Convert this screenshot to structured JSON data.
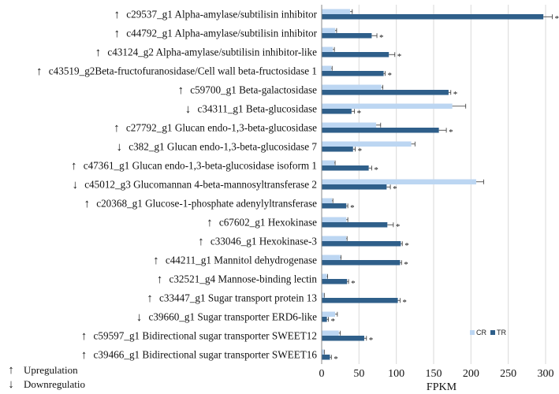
{
  "chart_data": {
    "type": "bar",
    "orientation": "horizontal",
    "xlabel": "FPKM",
    "xlim": [
      0,
      300
    ],
    "xticks": [
      0,
      50,
      100,
      150,
      200,
      250,
      300
    ],
    "grid": true,
    "legend_position": "bottom-right",
    "series_colors": {
      "CR": "#bcd6f2",
      "TR": "#2f5f8a"
    },
    "arrow_colors": {
      "up": "#e0201b",
      "down": "#2fa836"
    },
    "categories": [
      {
        "label": "c29537_g1  Alpha-amylase/subtilisin inhibitor",
        "regulation": "up",
        "CR": 38,
        "TR": 297,
        "cr_err": 3,
        "tr_err": 12,
        "significant": true
      },
      {
        "label": "c44792_g1  Alpha-amylase/subtilisin inhibitor",
        "regulation": "up",
        "CR": 18,
        "TR": 67,
        "cr_err": 2,
        "tr_err": 7,
        "significant": true
      },
      {
        "label": "c43124_g2  Alpha-amylase/subtilisin inhibitor-like",
        "regulation": "up",
        "CR": 15,
        "TR": 90,
        "cr_err": 2,
        "tr_err": 8,
        "significant": true
      },
      {
        "label": "c43519_g2Beta-fructofuranosidase/Cell wall beta-fructosidase 1",
        "regulation": "up",
        "CR": 13,
        "TR": 83,
        "cr_err": 1,
        "tr_err": 2,
        "significant": true
      },
      {
        "label": "c59700_g1  Beta-galactosidase",
        "regulation": "up",
        "CR": 80,
        "TR": 170,
        "cr_err": 2,
        "tr_err": 3,
        "significant": true
      },
      {
        "label": "c34311_g1  Beta-glucosidase",
        "regulation": "down",
        "CR": 175,
        "TR": 40,
        "cr_err": 18,
        "tr_err": 4,
        "significant": true
      },
      {
        "label": "c27792_g1  Glucan endo-1,3-beta-glucosidase",
        "regulation": "up",
        "CR": 73,
        "TR": 157,
        "cr_err": 6,
        "tr_err": 10,
        "significant": true
      },
      {
        "label": "c382_g1  Glucan endo-1,3-beta-glucosidase 7",
        "regulation": "down",
        "CR": 120,
        "TR": 42,
        "cr_err": 5,
        "tr_err": 3,
        "significant": true
      },
      {
        "label": "c47361_g1  Glucan endo-1,3-beta-glucosidase isoform 1",
        "regulation": "up",
        "CR": 17,
        "TR": 63,
        "cr_err": 1,
        "tr_err": 4,
        "significant": true
      },
      {
        "label": "c45012_g3  Glucomannan 4-beta-mannosyltransferase 2",
        "regulation": "down",
        "CR": 207,
        "TR": 87,
        "cr_err": 10,
        "tr_err": 5,
        "significant": true
      },
      {
        "label": "c20368_g1  Glucose-1-phosphate adenylyltransferase",
        "regulation": "up",
        "CR": 14,
        "TR": 33,
        "cr_err": 1,
        "tr_err": 2,
        "significant": true
      },
      {
        "label": "c67602_g1  Hexokinase",
        "regulation": "up",
        "CR": 33,
        "TR": 88,
        "cr_err": 2,
        "tr_err": 8,
        "significant": true
      },
      {
        "label": "c33046_g1  Hexokinase-3",
        "regulation": "up",
        "CR": 33,
        "TR": 106,
        "cr_err": 1,
        "tr_err": 2,
        "significant": true
      },
      {
        "label": "c44211_g1  Mannitol dehydrogenase",
        "regulation": "up",
        "CR": 25,
        "TR": 105,
        "cr_err": 1,
        "tr_err": 2,
        "significant": true
      },
      {
        "label": "c32521_g4  Mannose-binding lectin",
        "regulation": "up",
        "CR": 7,
        "TR": 34,
        "cr_err": 1,
        "tr_err": 2,
        "significant": true
      },
      {
        "label": "c33447_g1  Sugar transport protein 13",
        "regulation": "up",
        "CR": 3,
        "TR": 102,
        "cr_err": 0.5,
        "tr_err": 3,
        "significant": true
      },
      {
        "label": "c39660_g1  Sugar transporter ERD6-like",
        "regulation": "down",
        "CR": 18,
        "TR": 7,
        "cr_err": 3,
        "tr_err": 2,
        "significant": true
      },
      {
        "label": "c59597_g1  Bidirectional sugar transporter SWEET12",
        "regulation": "up",
        "CR": 23,
        "TR": 57,
        "cr_err": 2,
        "tr_err": 3,
        "significant": true
      },
      {
        "label": "c39466_g1  Bidirectional sugar transporter SWEET16",
        "regulation": "up",
        "CR": 3,
        "TR": 11,
        "cr_err": 0.5,
        "tr_err": 2,
        "significant": true
      }
    ],
    "series": [
      {
        "name": "CR"
      },
      {
        "name": "TR"
      }
    ],
    "significance_marker": "*",
    "key": [
      {
        "symbol": "↑",
        "text": "Upregulation",
        "regulation": "up"
      },
      {
        "symbol": "↓",
        "text": "Downregulatio",
        "regulation": "down"
      }
    ]
  }
}
